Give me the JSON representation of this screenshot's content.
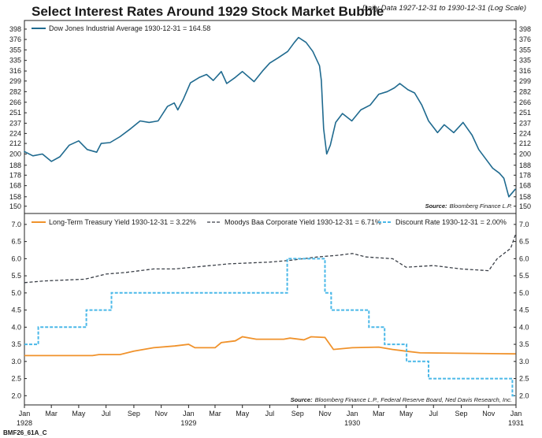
{
  "figure": {
    "title": "Select Interest Rates Around 1929 Stock Market Bubble",
    "subtitle": "Daily Data 1927-12-31 to 1930-12-31 (Log Scale)",
    "code": "BMF26_61A_C"
  },
  "chart_data": [
    {
      "type": "line",
      "scale": "log",
      "legend_position": "top-left",
      "grid": false,
      "yticks": [
        150,
        158,
        168,
        178,
        188,
        200,
        212,
        224,
        237,
        251,
        266,
        282,
        299,
        316,
        335,
        355,
        376,
        398
      ],
      "ylim": [
        146,
        412
      ],
      "source_label": "Source:",
      "source_text": "Bloomberg Finance L.P.",
      "series": [
        {
          "name": "Dow Jones Industrial Average 1930-12-31 = 164.58",
          "color": "#1f6a8f",
          "style": "solid",
          "x": [
            "1927-12-31",
            "1928-01-20",
            "1928-02-10",
            "1928-03-01",
            "1928-03-20",
            "1928-04-10",
            "1928-05-01",
            "1928-05-20",
            "1928-06-10",
            "1928-06-20",
            "1928-07-10",
            "1928-08-01",
            "1928-08-25",
            "1928-09-15",
            "1928-10-05",
            "1928-10-25",
            "1928-11-15",
            "1928-11-30",
            "1928-12-08",
            "1928-12-20",
            "1929-01-05",
            "1929-01-25",
            "1929-02-10",
            "1929-02-25",
            "1929-03-15",
            "1929-03-27",
            "1929-04-15",
            "1929-05-01",
            "1929-05-27",
            "1929-06-15",
            "1929-07-01",
            "1929-07-20",
            "1929-08-10",
            "1929-08-25",
            "1929-09-03",
            "1929-09-20",
            "1929-10-05",
            "1929-10-20",
            "1929-10-24",
            "1929-10-29",
            "1929-11-05",
            "1929-11-13",
            "1929-11-25",
            "1929-12-10",
            "1929-12-31",
            "1930-01-20",
            "1930-02-10",
            "1930-03-01",
            "1930-03-20",
            "1930-04-05",
            "1930-04-17",
            "1930-05-05",
            "1930-05-20",
            "1930-06-05",
            "1930-06-20",
            "1930-07-10",
            "1930-07-25",
            "1930-08-15",
            "1930-09-05",
            "1930-09-25",
            "1930-10-10",
            "1930-10-25",
            "1930-11-10",
            "1930-11-25",
            "1930-12-05",
            "1930-12-16",
            "1930-12-31"
          ],
          "y": [
            203,
            198,
            200,
            192,
            197,
            210,
            215,
            205,
            202,
            212,
            213,
            220,
            230,
            240,
            238,
            240,
            260,
            265,
            255,
            270,
            296,
            305,
            310,
            300,
            315,
            295,
            305,
            315,
            298,
            316,
            330,
            340,
            352,
            370,
            380,
            370,
            352,
            325,
            300,
            230,
            200,
            210,
            238,
            250,
            240,
            255,
            262,
            278,
            282,
            288,
            295,
            285,
            280,
            262,
            240,
            225,
            235,
            225,
            238,
            222,
            205,
            195,
            185,
            180,
            175,
            158,
            165
          ]
        }
      ]
    },
    {
      "type": "line",
      "legend_position": "top-left",
      "grid": false,
      "ylim": [
        1.8,
        7.25
      ],
      "yticks": [
        2.0,
        2.5,
        3.0,
        3.5,
        4.0,
        4.5,
        5.0,
        5.5,
        6.0,
        6.5,
        7.0
      ],
      "ytick_labels": [
        "2.0",
        "2.5",
        "3.0",
        "3.5",
        "4.0",
        "4.5",
        "5.0",
        "5.5",
        "6.0",
        "6.5",
        "7.0"
      ],
      "xlim": [
        "1928-01-01",
        "1931-01-01"
      ],
      "xtick_labels": [
        "Jan",
        "Mar",
        "May",
        "Jul",
        "Sep",
        "Nov",
        "Jan",
        "Mar",
        "May",
        "Jul",
        "Sep",
        "Nov",
        "Jan",
        "Mar",
        "May",
        "Jul",
        "Sep",
        "Nov",
        "Jan"
      ],
      "year_labels": [
        "1928",
        "1929",
        "1930",
        "1931"
      ],
      "source_label": "Source:",
      "source_text": "Bloomberg Finance L.P., Federal Reserve Board, Ned Davis Research, Inc.",
      "series": [
        {
          "name": "Long-Term Treasury Yield 1930-12-31 = 3.22%",
          "color": "#f0922b",
          "style": "solid",
          "x": [
            "1928-01-01",
            "1928-06-01",
            "1928-06-15",
            "1928-08-01",
            "1928-09-01",
            "1928-10-15",
            "1928-12-01",
            "1929-01-01",
            "1929-01-15",
            "1929-03-01",
            "1929-03-15",
            "1929-04-15",
            "1929-05-01",
            "1929-06-01",
            "1929-08-01",
            "1929-08-15",
            "1929-09-15",
            "1929-10-01",
            "1929-11-01",
            "1929-11-20",
            "1930-01-01",
            "1930-03-01",
            "1930-04-01",
            "1930-05-01",
            "1930-06-01",
            "1930-12-31"
          ],
          "y": [
            3.17,
            3.17,
            3.2,
            3.2,
            3.3,
            3.4,
            3.45,
            3.5,
            3.4,
            3.4,
            3.55,
            3.6,
            3.72,
            3.65,
            3.65,
            3.68,
            3.63,
            3.72,
            3.7,
            3.35,
            3.4,
            3.42,
            3.35,
            3.3,
            3.25,
            3.22
          ]
        },
        {
          "name": "Moodys Baa Corporate Yield 1930-12-31 = 6.71%",
          "color": "#3a3f47",
          "style": "dash",
          "x": [
            "1928-01-01",
            "1928-02-15",
            "1928-05-15",
            "1928-07-01",
            "1928-08-15",
            "1928-10-15",
            "1928-12-01",
            "1929-04-01",
            "1929-07-01",
            "1929-08-15",
            "1929-10-15",
            "1929-12-01",
            "1930-01-01",
            "1930-02-01",
            "1930-04-01",
            "1930-05-01",
            "1930-07-01",
            "1930-09-01",
            "1930-11-01",
            "1930-11-20",
            "1930-12-20",
            "1930-12-31"
          ],
          "y": [
            5.3,
            5.35,
            5.4,
            5.55,
            5.6,
            5.7,
            5.7,
            5.85,
            5.9,
            5.95,
            6.05,
            6.1,
            6.15,
            6.05,
            6.0,
            5.75,
            5.8,
            5.7,
            5.65,
            6.0,
            6.3,
            6.71
          ]
        },
        {
          "name": "Discount Rate 1930-12-31 = 2.00%",
          "color": "#4ab8e8",
          "style": "dash",
          "steps": true,
          "x": [
            "1928-01-01",
            "1928-02-01",
            "1928-05-18",
            "1928-07-13",
            "1929-08-09",
            "1929-11-01",
            "1929-11-15",
            "1930-02-07",
            "1930-03-14",
            "1930-05-02",
            "1930-06-20",
            "1930-12-24",
            "1930-12-31"
          ],
          "y": [
            3.5,
            4.0,
            4.5,
            5.0,
            6.0,
            5.0,
            4.5,
            4.0,
            3.5,
            3.0,
            2.5,
            2.0,
            2.0
          ]
        }
      ]
    }
  ]
}
